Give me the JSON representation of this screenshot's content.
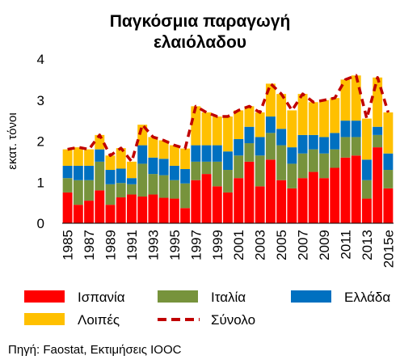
{
  "chart_data": {
    "type": "bar",
    "stacked": true,
    "title_lines": [
      "Παγκόσμια παραγωγή",
      "ελαιόλαδου"
    ],
    "ylabel": "εκατ. τόνοι",
    "xlabel": "",
    "ylim": [
      0,
      4
    ],
    "y_ticks": [
      "0",
      "1",
      "2",
      "3",
      "4"
    ],
    "grid": false,
    "legend_position": "bottom",
    "categories": [
      "1985",
      "1986",
      "1987",
      "1988",
      "1989",
      "1990",
      "1991",
      "1992",
      "1993",
      "1994",
      "1995",
      "1996",
      "1997",
      "1998",
      "1999",
      "2000",
      "2001",
      "2002",
      "2003",
      "2004",
      "2005",
      "2006",
      "2007",
      "2008",
      "2009",
      "2010",
      "2011",
      "2012",
      "2013",
      "2014",
      "2015e"
    ],
    "x_tick_labels": [
      "1985",
      "1987",
      "1989",
      "1991",
      "1993",
      "1995",
      "1997",
      "1999",
      "2001",
      "2003",
      "2005",
      "2007",
      "2009",
      "2011",
      "2013",
      "2015e"
    ],
    "series": [
      {
        "name": "Ισπανία",
        "color": "#ff0000",
        "values": [
          0.75,
          0.45,
          0.55,
          0.8,
          0.45,
          0.63,
          0.7,
          0.65,
          0.7,
          0.62,
          0.6,
          0.37,
          1.05,
          1.2,
          0.9,
          0.75,
          1.1,
          1.5,
          0.9,
          1.55,
          1.05,
          0.85,
          1.1,
          1.25,
          1.1,
          1.35,
          1.6,
          1.65,
          0.6,
          1.85,
          0.85
        ]
      },
      {
        "name": "Ιταλία",
        "color": "#77933c",
        "values": [
          0.35,
          0.6,
          0.5,
          0.7,
          0.5,
          0.35,
          0.25,
          0.8,
          0.5,
          0.55,
          0.45,
          0.6,
          0.45,
          0.3,
          0.6,
          0.55,
          0.55,
          0.45,
          0.75,
          0.65,
          0.85,
          0.6,
          0.6,
          0.55,
          0.6,
          0.45,
          0.5,
          0.45,
          0.45,
          0.3,
          0.45
        ]
      },
      {
        "name": "Ελλάδα",
        "color": "#0070c0",
        "values": [
          0.3,
          0.35,
          0.35,
          0.3,
          0.35,
          0.35,
          0.15,
          0.45,
          0.4,
          0.4,
          0.35,
          0.35,
          0.4,
          0.4,
          0.4,
          0.45,
          0.4,
          0.4,
          0.45,
          0.4,
          0.4,
          0.4,
          0.45,
          0.35,
          0.4,
          0.4,
          0.4,
          0.4,
          0.5,
          0.2,
          0.4
        ]
      },
      {
        "name": "Λοιπές",
        "color": "#ffc000",
        "values": [
          0.4,
          0.45,
          0.4,
          0.35,
          0.35,
          0.5,
          0.4,
          0.5,
          0.5,
          0.45,
          0.5,
          0.5,
          0.95,
          0.8,
          0.7,
          0.85,
          0.7,
          0.5,
          0.6,
          0.8,
          0.85,
          0.9,
          1.0,
          0.8,
          0.9,
          0.85,
          1.0,
          1.1,
          1.0,
          1.2,
          1.0
        ]
      }
    ],
    "total_line": {
      "name": "Σύνολο",
      "color": "#c00000",
      "style": "dashed",
      "values": [
        1.8,
        1.85,
        1.8,
        2.15,
        1.65,
        1.83,
        1.5,
        2.4,
        2.1,
        2.02,
        1.9,
        1.82,
        2.85,
        2.7,
        2.6,
        2.6,
        2.75,
        2.85,
        2.7,
        3.4,
        3.15,
        2.75,
        3.15,
        2.95,
        3.0,
        3.05,
        3.5,
        3.6,
        2.55,
        3.55,
        2.7
      ]
    }
  },
  "source_note": "Πηγή: Faostat, Εκτιμήσεις IOOC"
}
